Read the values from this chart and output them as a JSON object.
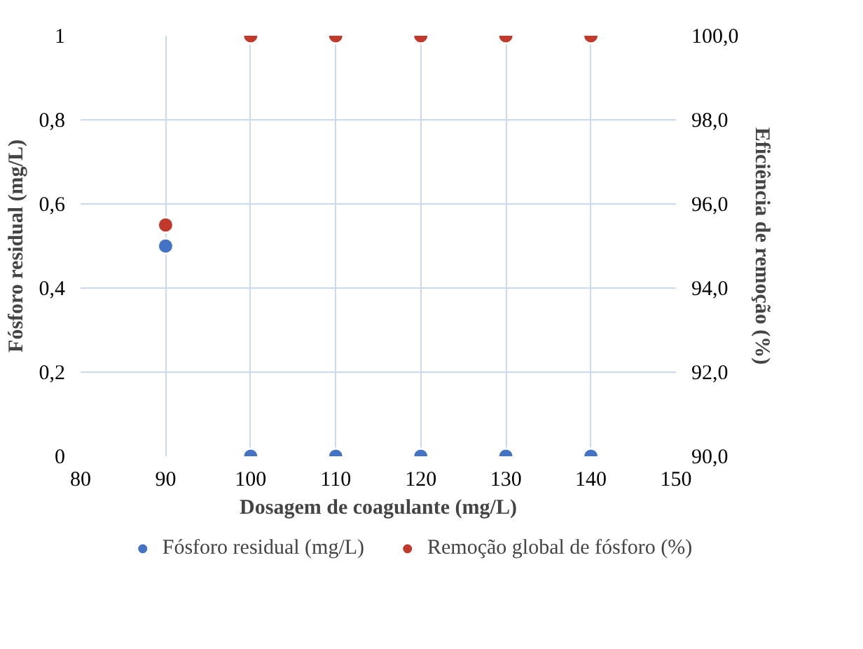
{
  "chart_data": {
    "type": "scatter",
    "xlabel": "Dosagem de coagulante (mg/L)",
    "ylabel": "Fósforo residual (mg/L)",
    "y2label": "Eficiência de remoção (%)",
    "x": [
      90,
      100,
      110,
      120,
      130,
      140
    ],
    "series": [
      {
        "name": "Fósforo residual (mg/L)",
        "color": "#4472c4",
        "values": [
          0.5,
          0,
          0,
          0,
          0,
          0
        ]
      },
      {
        "name": "Remoção global de fósforo (%)",
        "color": "#c0392b",
        "values": [
          95.5,
          100,
          100,
          100,
          100,
          100
        ],
        "axis": "y2"
      }
    ],
    "xlim": [
      80,
      150
    ],
    "xticks": [
      80,
      90,
      100,
      110,
      120,
      130,
      140,
      150
    ],
    "ylim": [
      0,
      1
    ],
    "yticks": [
      0,
      {
        "value": 0.2,
        "label": "0,2"
      },
      {
        "value": 0.4,
        "label": "0,4"
      },
      {
        "value": 0.6,
        "label": "0,6"
      },
      {
        "value": 0.8,
        "label": "0,8"
      },
      1
    ],
    "y2lim": [
      90,
      100
    ],
    "y2ticks": [
      {
        "value": 90,
        "label": "90,0"
      },
      {
        "value": 92,
        "label": "92,0"
      },
      {
        "value": 94,
        "label": "94,0"
      },
      {
        "value": 96,
        "label": "96,0"
      },
      {
        "value": 98,
        "label": "98,0"
      },
      {
        "value": 100,
        "label": "100,0"
      }
    ],
    "grid": true,
    "legend": "bottom",
    "marker": "circle"
  }
}
